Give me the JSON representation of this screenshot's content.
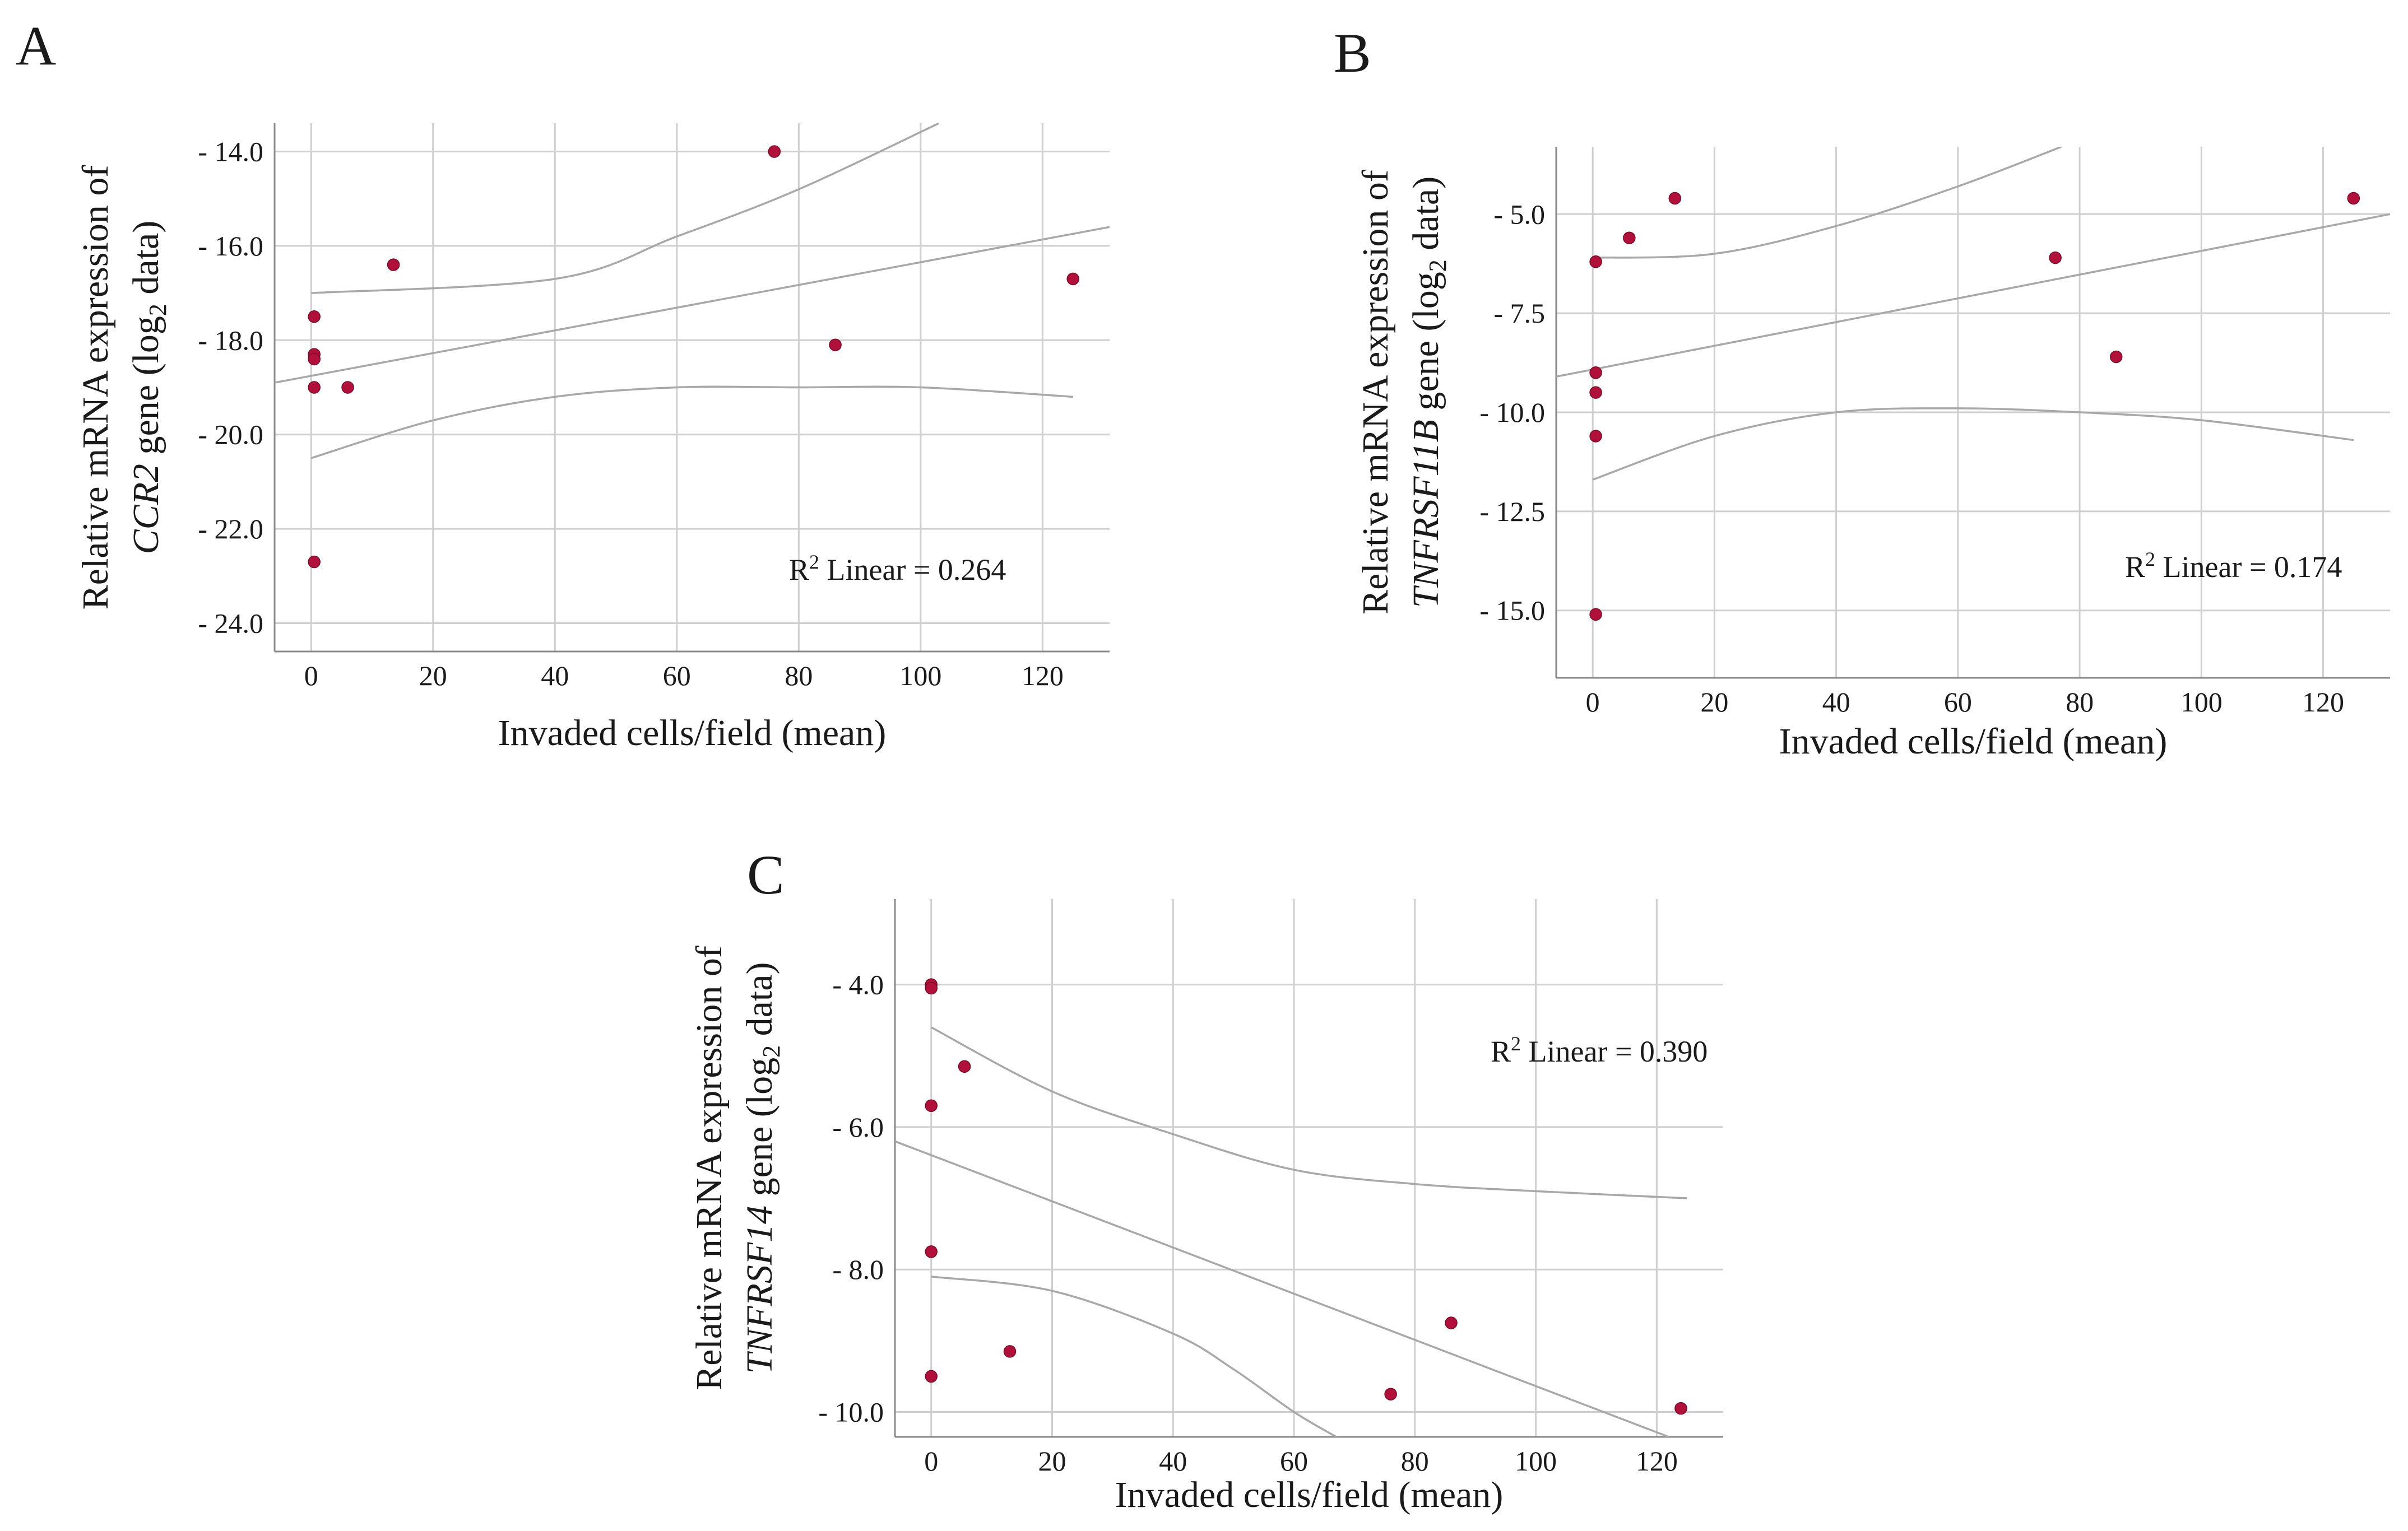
{
  "chart_data": [
    {
      "type": "scatter",
      "panel_label": "A",
      "title": "",
      "xlabel": "Invaded cells/field (mean)",
      "ylabel_line1": "Relative mRNA expression of",
      "ylabel_gene": "CCR2",
      "ylabel_rest_pre": " gene (log",
      "ylabel_sub": "2",
      "ylabel_rest_post": " data)",
      "xlim": [
        -6,
        131
      ],
      "ylim": [
        -24.6,
        -13.4
      ],
      "x_ticks": [
        0,
        20,
        40,
        60,
        80,
        100,
        120
      ],
      "x_tick_labels": [
        "0",
        "20",
        "40",
        "60",
        "80",
        "100",
        "120"
      ],
      "y_ticks": [
        -14,
        -16,
        -18,
        -20,
        -22,
        -24
      ],
      "y_tick_labels": [
        "- 14.0",
        "- 16.0",
        "- 18.0",
        "- 20.0",
        "- 22.0",
        "- 24.0"
      ],
      "grid": true,
      "points": {
        "x": [
          0.5,
          0.5,
          0.5,
          0.5,
          0.5,
          6,
          13.5,
          76,
          86,
          125
        ],
        "y": [
          -17.5,
          -18.3,
          -18.4,
          -19.0,
          -22.7,
          -19.0,
          -16.4,
          -14.0,
          -18.1,
          -16.7
        ]
      },
      "fit_line": {
        "x": [
          -6,
          131
        ],
        "y": [
          -18.9,
          -15.6
        ]
      },
      "ci_upper": {
        "x": [
          0,
          40,
          60,
          80,
          103
        ],
        "y": [
          -17.0,
          -16.7,
          -15.8,
          -14.8,
          -13.4
        ]
      },
      "ci_lower": {
        "x": [
          0,
          20,
          40,
          60,
          80,
          100,
          125
        ],
        "y": [
          -20.5,
          -19.7,
          -19.2,
          -19.0,
          -19.0,
          -19.0,
          -19.2
        ]
      },
      "r2_label": "R",
      "r2_sup": "2",
      "r2_text": " Linear = 0.264",
      "point_color": "#b0103a"
    },
    {
      "type": "scatter",
      "panel_label": "B",
      "title": "",
      "xlabel": "Invaded cells/field (mean)",
      "ylabel_line1": "Relative mRNA expression of",
      "ylabel_gene": "TNFRSF11B",
      "ylabel_rest_pre": " gene (log",
      "ylabel_sub": "2",
      "ylabel_rest_post": " data)",
      "xlim": [
        -6,
        131
      ],
      "ylim": [
        -16.7,
        -3.3
      ],
      "x_ticks": [
        0,
        20,
        40,
        60,
        80,
        100,
        120
      ],
      "x_tick_labels": [
        "0",
        "20",
        "40",
        "60",
        "80",
        "100",
        "120"
      ],
      "y_ticks": [
        -5,
        -7.5,
        -10,
        -12.5,
        -15
      ],
      "y_tick_labels": [
        "- 5.0",
        "- 7.5",
        "- 10.0",
        "- 12.5",
        "- 15.0"
      ],
      "grid": true,
      "points": {
        "x": [
          0.5,
          0.5,
          0.5,
          0.5,
          0.5,
          6,
          13.5,
          76,
          86,
          125
        ],
        "y": [
          -6.2,
          -9.0,
          -9.5,
          -10.6,
          -15.1,
          -5.6,
          -4.6,
          -6.1,
          -8.6,
          -4.6
        ]
      },
      "fit_line": {
        "x": [
          -6,
          131
        ],
        "y": [
          -9.1,
          -5.0
        ]
      },
      "ci_upper": {
        "x": [
          0,
          20,
          40,
          60,
          77
        ],
        "y": [
          -6.1,
          -6.0,
          -5.3,
          -4.3,
          -3.3
        ]
      },
      "ci_lower": {
        "x": [
          0,
          20,
          40,
          60,
          80,
          100,
          125
        ],
        "y": [
          -11.7,
          -10.6,
          -10.0,
          -9.9,
          -10.0,
          -10.2,
          -10.7
        ]
      },
      "r2_label": "R",
      "r2_sup": "2",
      "r2_text": " Linear = 0.174",
      "point_color": "#b0103a"
    },
    {
      "type": "scatter",
      "panel_label": "C",
      "title": "",
      "xlabel": "Invaded cells/field (mean)",
      "ylabel_line1": "Relative mRNA expression of",
      "ylabel_gene": "TNFRSF14",
      "ylabel_rest_pre": " gene (log",
      "ylabel_sub": "2",
      "ylabel_rest_post": " data)",
      "xlim": [
        -6,
        131
      ],
      "ylim": [
        -10.35,
        -2.8
      ],
      "x_ticks": [
        0,
        20,
        40,
        60,
        80,
        100,
        120
      ],
      "x_tick_labels": [
        "0",
        "20",
        "40",
        "60",
        "80",
        "100",
        "120"
      ],
      "y_ticks": [
        -4,
        -6,
        -8,
        -10
      ],
      "y_tick_labels": [
        "- 4.0",
        "- 6.0",
        "- 8.0",
        "- 10.0"
      ],
      "grid": true,
      "points": {
        "x": [
          0,
          0,
          0,
          0,
          0,
          5.5,
          13,
          76,
          86,
          124
        ],
        "y": [
          -4.0,
          -4.05,
          -5.7,
          -7.75,
          -9.5,
          -5.15,
          -9.15,
          -9.75,
          -8.75,
          -9.95
        ]
      },
      "fit_line": {
        "x": [
          -6,
          122
        ],
        "y": [
          -6.2,
          -10.35
        ]
      },
      "ci_upper": {
        "x": [
          0,
          20,
          40,
          60,
          80,
          100,
          125
        ],
        "y": [
          -4.6,
          -5.5,
          -6.1,
          -6.6,
          -6.8,
          -6.9,
          -7.0
        ]
      },
      "ci_lower": {
        "x": [
          0,
          20,
          40,
          50,
          60,
          67
        ],
        "y": [
          -8.1,
          -8.3,
          -8.9,
          -9.4,
          -10.0,
          -10.35
        ]
      },
      "r2_label": "R",
      "r2_sup": "2",
      "r2_text": " Linear = 0.390",
      "point_color": "#b0103a"
    }
  ]
}
